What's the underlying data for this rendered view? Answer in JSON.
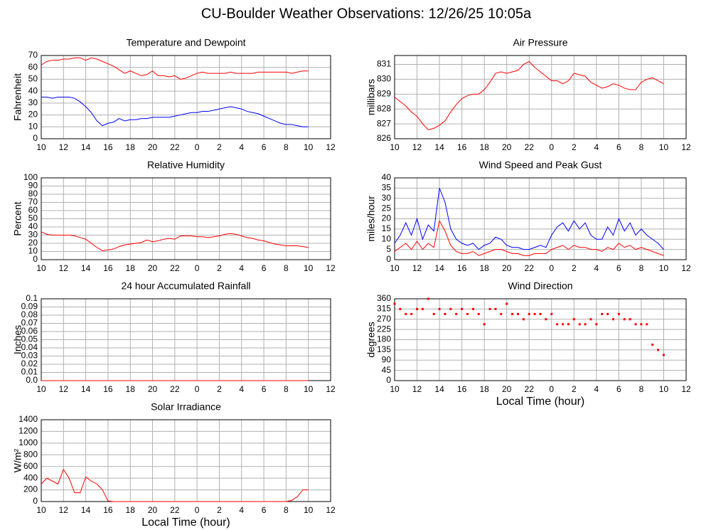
{
  "title": "CU-Boulder Weather Observations: 12/26/25 10:05a",
  "chart_data": [
    {
      "type": "line",
      "title": "Temperature and Dewpoint",
      "ylabel": "Fahrenheit",
      "grid": true,
      "xlim": [
        10,
        36
      ],
      "xticks": [
        10,
        12,
        14,
        16,
        18,
        20,
        22,
        {
          "value": 24,
          "label": "0"
        },
        {
          "value": 26,
          "label": "2"
        },
        {
          "value": 28,
          "label": "4"
        },
        {
          "value": 30,
          "label": "6"
        },
        {
          "value": 32,
          "label": "8"
        },
        {
          "value": 34,
          "label": "10"
        },
        {
          "value": 36,
          "label": "12"
        }
      ],
      "ylim": [
        0,
        70
      ],
      "yticks": [
        0,
        10,
        20,
        30,
        40,
        50,
        60,
        70
      ],
      "x": [
        10,
        10.5,
        11,
        11.5,
        12,
        12.5,
        13,
        13.5,
        14,
        14.5,
        15,
        15.5,
        16,
        16.5,
        17,
        17.5,
        18,
        18.5,
        19,
        19.5,
        20,
        20.5,
        21,
        21.5,
        22,
        22.5,
        23,
        23.5,
        24,
        24.5,
        25,
        25.5,
        26,
        26.5,
        27,
        27.5,
        28,
        28.5,
        29,
        29.5,
        30,
        30.5,
        31,
        31.5,
        32,
        32.5,
        33,
        33.5,
        34
      ],
      "series": [
        {
          "color": "#ff0000",
          "values": [
            62,
            65,
            66,
            66,
            67,
            67,
            68,
            68,
            66,
            68,
            67,
            65,
            63,
            61,
            58,
            55,
            57,
            55,
            53,
            54,
            57,
            53,
            53,
            52,
            53,
            50,
            51,
            53,
            55,
            56,
            55,
            55,
            55,
            55,
            56,
            55,
            55,
            55,
            55,
            56,
            56,
            56,
            56,
            56,
            56,
            55,
            56,
            57,
            57
          ]
        },
        {
          "color": "#0000ff",
          "values": [
            35,
            35,
            34,
            35,
            35,
            35,
            34,
            31,
            27,
            22,
            15,
            11,
            13,
            14,
            17,
            15,
            16,
            16,
            17,
            17,
            18,
            18,
            18,
            18,
            19,
            20,
            21,
            22,
            22,
            23,
            23,
            24,
            25,
            26,
            27,
            26,
            25,
            23,
            22,
            21,
            19,
            17,
            15,
            13,
            12,
            12,
            11,
            10,
            10
          ]
        }
      ]
    },
    {
      "type": "line",
      "title": "Air Pressure",
      "ylabel": "millibars",
      "grid": true,
      "xlim": [
        10,
        36
      ],
      "xticks": [
        10,
        12,
        14,
        16,
        18,
        20,
        22,
        {
          "value": 24,
          "label": "0"
        },
        {
          "value": 26,
          "label": "2"
        },
        {
          "value": 28,
          "label": "4"
        },
        {
          "value": 30,
          "label": "6"
        },
        {
          "value": 32,
          "label": "8"
        },
        {
          "value": 34,
          "label": "10"
        },
        {
          "value": 36,
          "label": "12"
        }
      ],
      "ylim": [
        826,
        831.6
      ],
      "yticks": [
        826,
        827,
        828,
        829,
        830,
        831
      ],
      "x": [
        10,
        10.5,
        11,
        11.5,
        12,
        12.5,
        13,
        13.5,
        14,
        14.5,
        15,
        15.5,
        16,
        16.5,
        17,
        17.5,
        18,
        18.5,
        19,
        19.5,
        20,
        20.5,
        21,
        21.5,
        22,
        22.5,
        23,
        23.5,
        24,
        24.5,
        25,
        25.5,
        26,
        26.5,
        27,
        27.5,
        28,
        28.5,
        29,
        29.5,
        30,
        30.5,
        31,
        31.5,
        32,
        32.5,
        33,
        33.5,
        34
      ],
      "series": [
        {
          "color": "#ff0000",
          "values": [
            828.8,
            828.5,
            828.2,
            827.8,
            827.5,
            827.0,
            826.6,
            826.7,
            826.9,
            827.2,
            827.8,
            828.3,
            828.7,
            828.9,
            829.0,
            829.0,
            829.3,
            829.8,
            830.4,
            830.5,
            830.4,
            830.5,
            830.6,
            831.0,
            831.2,
            830.8,
            830.5,
            830.2,
            829.9,
            829.9,
            829.7,
            829.9,
            830.4,
            830.3,
            830.2,
            829.8,
            829.6,
            829.4,
            829.5,
            829.7,
            829.6,
            829.4,
            829.3,
            829.3,
            829.8,
            830.0,
            830.1,
            829.9,
            829.7
          ]
        }
      ]
    },
    {
      "type": "line",
      "title": "Relative Humidity",
      "ylabel": "Percent",
      "grid": true,
      "xlim": [
        10,
        36
      ],
      "xticks": [
        10,
        12,
        14,
        16,
        18,
        20,
        22,
        {
          "value": 24,
          "label": "0"
        },
        {
          "value": 26,
          "label": "2"
        },
        {
          "value": 28,
          "label": "4"
        },
        {
          "value": 30,
          "label": "6"
        },
        {
          "value": 32,
          "label": "8"
        },
        {
          "value": 34,
          "label": "10"
        },
        {
          "value": 36,
          "label": "12"
        }
      ],
      "ylim": [
        0,
        100
      ],
      "yticks": [
        0,
        10,
        20,
        30,
        40,
        50,
        60,
        70,
        80,
        90,
        100
      ],
      "x": [
        10,
        10.5,
        11,
        11.5,
        12,
        12.5,
        13,
        13.5,
        14,
        14.5,
        15,
        15.5,
        16,
        16.5,
        17,
        17.5,
        18,
        18.5,
        19,
        19.5,
        20,
        20.5,
        21,
        21.5,
        22,
        22.5,
        23,
        23.5,
        24,
        24.5,
        25,
        25.5,
        26,
        26.5,
        27,
        27.5,
        28,
        28.5,
        29,
        29.5,
        30,
        30.5,
        31,
        31.5,
        32,
        32.5,
        33,
        33.5,
        34
      ],
      "series": [
        {
          "color": "#ff0000",
          "values": [
            34,
            31,
            30,
            30,
            30,
            30,
            29,
            27,
            25,
            20,
            15,
            11,
            12,
            13,
            16,
            18,
            19,
            20,
            21,
            24,
            22,
            23,
            25,
            26,
            25,
            29,
            29,
            29,
            28,
            28,
            27,
            28,
            29,
            31,
            32,
            31,
            29,
            27,
            26,
            24,
            23,
            21,
            19,
            18,
            17,
            17,
            17,
            16,
            15
          ]
        }
      ]
    },
    {
      "type": "line",
      "title": "Wind Speed and Peak Gust",
      "ylabel": "miles/hour",
      "grid": true,
      "xlim": [
        10,
        36
      ],
      "xticks": [
        10,
        12,
        14,
        16,
        18,
        20,
        22,
        {
          "value": 24,
          "label": "0"
        },
        {
          "value": 26,
          "label": "2"
        },
        {
          "value": 28,
          "label": "4"
        },
        {
          "value": 30,
          "label": "6"
        },
        {
          "value": 32,
          "label": "8"
        },
        {
          "value": 34,
          "label": "10"
        },
        {
          "value": 36,
          "label": "12"
        }
      ],
      "ylim": [
        0,
        40
      ],
      "yticks": [
        0,
        5,
        10,
        15,
        20,
        25,
        30,
        35,
        40
      ],
      "x": [
        10,
        10.5,
        11,
        11.5,
        12,
        12.5,
        13,
        13.5,
        14,
        14.5,
        15,
        15.5,
        16,
        16.5,
        17,
        17.5,
        18,
        18.5,
        19,
        19.5,
        20,
        20.5,
        21,
        21.5,
        22,
        22.5,
        23,
        23.5,
        24,
        24.5,
        25,
        25.5,
        26,
        26.5,
        27,
        27.5,
        28,
        28.5,
        29,
        29.5,
        30,
        30.5,
        31,
        31.5,
        32,
        32.5,
        33,
        33.5,
        34
      ],
      "series": [
        {
          "color": "#0000ff",
          "values": [
            8,
            12,
            18,
            12,
            20,
            10,
            17,
            14,
            35,
            28,
            15,
            10,
            8,
            7,
            8,
            5,
            7,
            8,
            11,
            10,
            7,
            6,
            6,
            5,
            5,
            6,
            7,
            6,
            12,
            16,
            18,
            14,
            19,
            15,
            18,
            12,
            10,
            10,
            16,
            12,
            20,
            14,
            18,
            12,
            15,
            12,
            10,
            8,
            5
          ]
        },
        {
          "color": "#ff0000",
          "values": [
            4,
            6,
            8,
            5,
            9,
            5,
            8,
            6,
            19,
            14,
            7,
            4,
            3,
            3,
            4,
            2,
            3,
            4,
            5,
            5,
            4,
            3,
            3,
            2,
            2,
            3,
            3,
            3,
            5,
            6,
            7,
            5,
            7,
            6,
            6,
            5,
            5,
            4,
            6,
            5,
            8,
            6,
            7,
            5,
            6,
            5,
            4,
            3,
            2
          ]
        }
      ]
    },
    {
      "type": "line",
      "title": "24 hour Accumulated Rainfall",
      "ylabel": "Inches",
      "grid": true,
      "xlim": [
        10,
        36
      ],
      "xticks": [
        10,
        12,
        14,
        16,
        18,
        20,
        22,
        {
          "value": 24,
          "label": "0"
        },
        {
          "value": 26,
          "label": "2"
        },
        {
          "value": 28,
          "label": "4"
        },
        {
          "value": 30,
          "label": "6"
        },
        {
          "value": 32,
          "label": "8"
        },
        {
          "value": 34,
          "label": "10"
        },
        {
          "value": 36,
          "label": "12"
        }
      ],
      "ylim": [
        0,
        0.1
      ],
      "yticks": [
        {
          "value": 0,
          "label": "0.0"
        },
        0.01,
        0.02,
        0.03,
        0.04,
        0.05,
        0.06,
        0.07,
        0.08,
        0.09,
        {
          "value": 0.1,
          "label": "0.1"
        }
      ],
      "x": [
        10,
        34
      ],
      "series": [
        {
          "color": "#ff0000",
          "values": [
            0,
            0
          ]
        }
      ]
    },
    {
      "type": "scatter",
      "title": "Wind Direction",
      "ylabel": "degrees",
      "xlabel": "Local Time (hour)",
      "grid": true,
      "xlim": [
        10,
        36
      ],
      "xticks": [
        10,
        12,
        14,
        16,
        18,
        20,
        22,
        {
          "value": 24,
          "label": "0"
        },
        {
          "value": 26,
          "label": "2"
        },
        {
          "value": 28,
          "label": "4"
        },
        {
          "value": 30,
          "label": "6"
        },
        {
          "value": 32,
          "label": "8"
        },
        {
          "value": 34,
          "label": "10"
        },
        {
          "value": 36,
          "label": "12"
        }
      ],
      "ylim": [
        0,
        360
      ],
      "yticks": [
        0,
        45,
        90,
        135,
        180,
        225,
        270,
        315,
        360
      ],
      "x": [
        10,
        10.5,
        11,
        11.5,
        12,
        12.5,
        13,
        13.5,
        14,
        14.5,
        15,
        15.5,
        16,
        16.5,
        17,
        17.5,
        18,
        18.5,
        19,
        19.5,
        20,
        20.5,
        21,
        21.5,
        22,
        22.5,
        23,
        23.5,
        24,
        24.5,
        25,
        25.5,
        26,
        26.5,
        27,
        27.5,
        28,
        28.5,
        29,
        29.5,
        30,
        30.5,
        31,
        31.5,
        32,
        32.5,
        33,
        33.5,
        34
      ],
      "series": [
        {
          "color": "#ff0000",
          "values": [
            338,
            315,
            293,
            293,
            315,
            315,
            360,
            293,
            315,
            293,
            315,
            293,
            315,
            293,
            315,
            293,
            248,
            315,
            315,
            293,
            338,
            293,
            293,
            270,
            293,
            293,
            293,
            270,
            293,
            248,
            248,
            248,
            270,
            248,
            248,
            270,
            248,
            293,
            293,
            270,
            293,
            270,
            270,
            248,
            248,
            248,
            158,
            135,
            113
          ]
        }
      ]
    },
    {
      "type": "line",
      "title": "Solar Irradiance",
      "ylabel": "W/m²",
      "xlabel": "Local Time (hour)",
      "grid": true,
      "xlim": [
        10,
        36
      ],
      "xticks": [
        10,
        12,
        14,
        16,
        18,
        20,
        22,
        {
          "value": 24,
          "label": "0"
        },
        {
          "value": 26,
          "label": "2"
        },
        {
          "value": 28,
          "label": "4"
        },
        {
          "value": 30,
          "label": "6"
        },
        {
          "value": 32,
          "label": "8"
        },
        {
          "value": 34,
          "label": "10"
        },
        {
          "value": 36,
          "label": "12"
        }
      ],
      "ylim": [
        0,
        1400
      ],
      "yticks": [
        0,
        200,
        400,
        600,
        800,
        1000,
        1200,
        1400
      ],
      "x": [
        10,
        10.5,
        11,
        11.5,
        12,
        12.5,
        13,
        13.5,
        14,
        14.5,
        15,
        15.5,
        16,
        16.5,
        17,
        17.5,
        18,
        18.5,
        19,
        19.5,
        20,
        20.5,
        21,
        21.5,
        22,
        22.5,
        23,
        23.5,
        24,
        24.5,
        25,
        25.5,
        26,
        26.5,
        27,
        27.5,
        28,
        28.5,
        29,
        29.5,
        30,
        30.5,
        31,
        31.5,
        32,
        32.5,
        33,
        33.5,
        34
      ],
      "series": [
        {
          "color": "#ff0000",
          "values": [
            300,
            400,
            350,
            300,
            550,
            400,
            150,
            150,
            420,
            350,
            300,
            200,
            10,
            0,
            0,
            0,
            0,
            0,
            0,
            0,
            0,
            0,
            0,
            0,
            0,
            0,
            0,
            0,
            0,
            0,
            0,
            0,
            0,
            0,
            0,
            0,
            0,
            0,
            0,
            0,
            0,
            0,
            0,
            0,
            0,
            20,
            80,
            200,
            200
          ]
        }
      ]
    }
  ]
}
